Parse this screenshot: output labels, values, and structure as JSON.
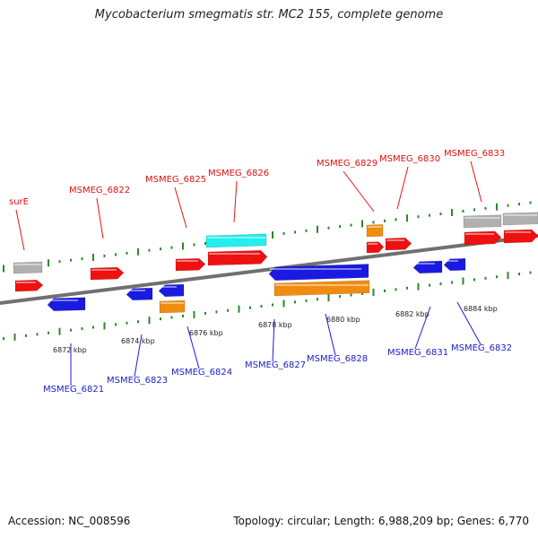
{
  "title": "Mycobacterium smegmatis str. MC2 155, complete genome",
  "accession": "Accession: NC_008596",
  "summary": "Topology: circular; Length: 6,988,209 bp; Genes: 6,770",
  "colors": {
    "forward": "#ee1111",
    "reverse": "#1a1ae0",
    "rna": "#f08c10",
    "pseudo": "#b0b0b0",
    "highlight": "#22eeee",
    "backbone": "#707070",
    "tick": "#2a8a2a"
  },
  "ticks": [
    {
      "label": "6872 kbp"
    },
    {
      "label": "6874 kbp"
    },
    {
      "label": "6876 kbp"
    },
    {
      "label": "6878 kbp"
    },
    {
      "label": "6880 kbp"
    },
    {
      "label": "6882 kbp"
    },
    {
      "label": "6884 kbp"
    }
  ],
  "top_labels": [
    {
      "text": "surE"
    },
    {
      "text": "MSMEG_6822"
    },
    {
      "text": "MSMEG_6825"
    },
    {
      "text": "MSMEG_6826"
    },
    {
      "text": "MSMEG_6829"
    },
    {
      "text": "MSMEG_6830"
    },
    {
      "text": "MSMEG_6833"
    }
  ],
  "bottom_labels": [
    {
      "text": "MSMEG_6821"
    },
    {
      "text": "MSMEG_6823"
    },
    {
      "text": "MSMEG_6824"
    },
    {
      "text": "MSMEG_6827"
    },
    {
      "text": "MSMEG_6828"
    },
    {
      "text": "MSMEG_6831"
    },
    {
      "text": "MSMEG_6832"
    }
  ]
}
